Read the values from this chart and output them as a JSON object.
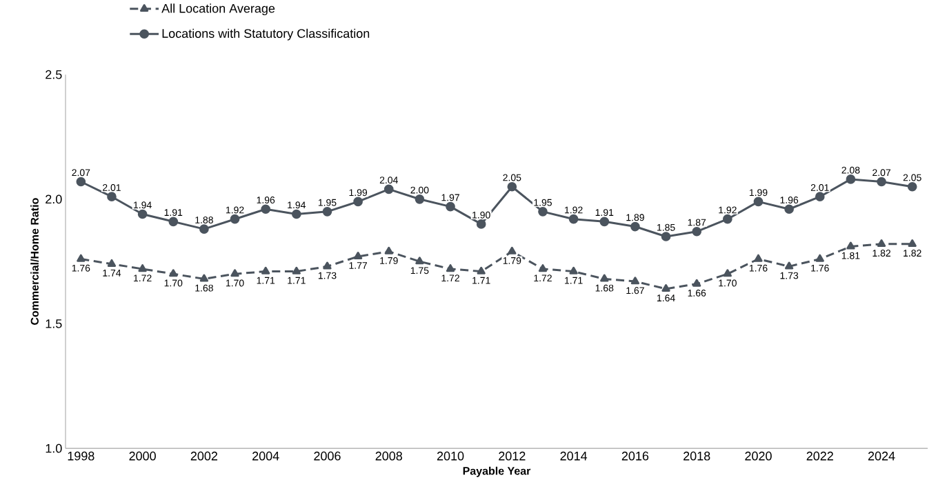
{
  "chart_data": {
    "type": "line",
    "xlabel": "Payable Year",
    "ylabel": "Commercial/Home Ratio",
    "x": [
      1998,
      1999,
      2000,
      2001,
      2002,
      2003,
      2004,
      2005,
      2006,
      2007,
      2008,
      2009,
      2010,
      2011,
      2012,
      2013,
      2014,
      2015,
      2016,
      2017,
      2018,
      2019,
      2020,
      2021,
      2022,
      2023,
      2024,
      2025
    ],
    "xlim": [
      1997.5,
      2025.5
    ],
    "xticks": [
      1998,
      2000,
      2002,
      2004,
      2006,
      2008,
      2010,
      2012,
      2014,
      2016,
      2018,
      2020,
      2022,
      2024
    ],
    "ylim": [
      1.0,
      2.5
    ],
    "yticks": [
      {
        "value": 1.0,
        "label": "1.0"
      },
      {
        "value": 1.5,
        "label": "1.5"
      },
      {
        "value": 2.0,
        "label": "2.0"
      },
      {
        "value": 2.5,
        "label": "2.5"
      }
    ],
    "legend": "top left",
    "series": [
      {
        "name": "All Location Average",
        "color": "#4b545e",
        "marker": "triangle",
        "line_style": "dashed",
        "values": [
          1.76,
          1.74,
          1.72,
          1.7,
          1.68,
          1.7,
          1.71,
          1.71,
          1.73,
          1.77,
          1.79,
          1.75,
          1.72,
          1.71,
          1.79,
          1.72,
          1.71,
          1.68,
          1.67,
          1.64,
          1.66,
          1.7,
          1.76,
          1.73,
          1.76,
          1.81,
          1.82,
          1.82
        ],
        "value_labels": [
          "1.76",
          "1.74",
          "1.72",
          "1.70",
          "1.68",
          "1.70",
          "1.71",
          "1.71",
          "1.73",
          "1.77",
          "1.79",
          "1.75",
          "1.72",
          "1.71",
          "1.79",
          "1.72",
          "1.71",
          "1.68",
          "1.67",
          "1.64",
          "1.66",
          "1.70",
          "1.76",
          "1.73",
          "1.76",
          "1.81",
          "1.82",
          "1.82"
        ]
      },
      {
        "name": "Locations with Statutory Classification",
        "color": "#4b545e",
        "marker": "circle",
        "line_style": "solid",
        "values": [
          2.07,
          2.01,
          1.94,
          1.91,
          1.88,
          1.92,
          1.96,
          1.94,
          1.95,
          1.99,
          2.04,
          2.0,
          1.97,
          1.9,
          2.05,
          1.95,
          1.92,
          1.91,
          1.89,
          1.85,
          1.87,
          1.92,
          1.99,
          1.96,
          2.01,
          2.08,
          2.07,
          2.05
        ],
        "value_labels": [
          "2.07",
          "2.01",
          "1.94",
          "1.91",
          "1.88",
          "1.92",
          "1.96",
          "1.94",
          "1.95",
          "1.99",
          "2.04",
          "2.00",
          "1.97",
          "1.90",
          "2.05",
          "1.95",
          "1.92",
          "1.91",
          "1.89",
          "1.85",
          "1.87",
          "1.92",
          "1.99",
          "1.96",
          "2.01",
          "2.08",
          "2.07",
          "2.05"
        ]
      }
    ]
  }
}
